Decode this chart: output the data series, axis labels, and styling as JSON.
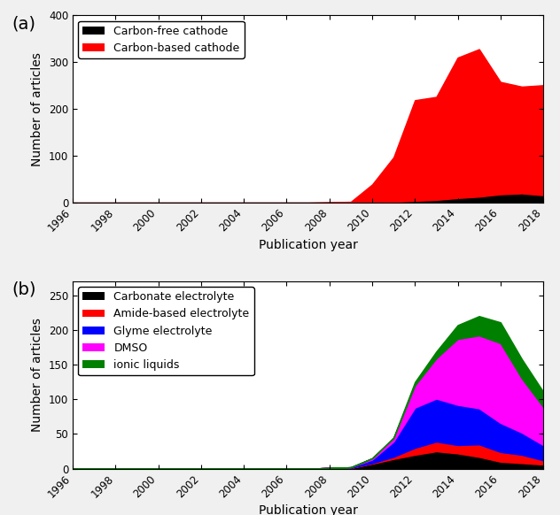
{
  "years": [
    1996,
    1997,
    1998,
    1999,
    2000,
    2001,
    2002,
    2003,
    2004,
    2005,
    2006,
    2007,
    2008,
    2009,
    2010,
    2011,
    2012,
    2013,
    2014,
    2015,
    2016,
    2017,
    2018
  ],
  "carbon_free": [
    0,
    0,
    0,
    0,
    0,
    0,
    0,
    0,
    0,
    0,
    0,
    0,
    0,
    0,
    1,
    2,
    4,
    6,
    10,
    13,
    18,
    20,
    16
  ],
  "carbon_based": [
    0,
    0,
    0,
    0,
    0,
    0,
    0,
    0,
    0,
    0,
    0,
    0,
    1,
    2,
    38,
    95,
    215,
    220,
    300,
    315,
    240,
    228,
    235
  ],
  "carbonate": [
    0,
    0,
    0,
    0,
    0,
    0,
    0,
    0,
    0,
    0,
    0,
    0,
    1,
    1,
    7,
    14,
    20,
    25,
    22,
    17,
    10,
    8,
    6
  ],
  "amide": [
    0,
    0,
    0,
    0,
    0,
    0,
    0,
    0,
    0,
    0,
    0,
    0,
    0,
    0,
    1,
    3,
    10,
    14,
    12,
    18,
    14,
    12,
    6
  ],
  "glyme": [
    0,
    0,
    0,
    0,
    0,
    0,
    0,
    0,
    0,
    0,
    0,
    0,
    0,
    1,
    5,
    22,
    58,
    62,
    58,
    52,
    42,
    32,
    22
  ],
  "dmso": [
    0,
    0,
    0,
    0,
    0,
    0,
    0,
    0,
    0,
    0,
    0,
    0,
    0,
    0,
    2,
    5,
    32,
    58,
    95,
    105,
    115,
    78,
    55
  ],
  "ionic_liquids": [
    0,
    0,
    0,
    0,
    0,
    0,
    0,
    0,
    0,
    0,
    0,
    0,
    0,
    0,
    0,
    1,
    5,
    10,
    20,
    28,
    30,
    28,
    22
  ],
  "panel_a_ylim": [
    0,
    400
  ],
  "panel_b_ylim": [
    0,
    270
  ],
  "panel_b_yticks": [
    0,
    50,
    100,
    150,
    200,
    250
  ],
  "panel_a_yticks": [
    0,
    100,
    200,
    300,
    400
  ],
  "xlabel": "Publication year",
  "ylabel": "Number of articles",
  "legend_a": [
    "Carbon-free cathode",
    "Carbon-based cathode"
  ],
  "legend_b": [
    "Carbonate electrolyte",
    "Amide-based electrolyte",
    "Glyme electrolyte",
    "DMSO",
    "ionic liquids"
  ],
  "colors_a": [
    "#000000",
    "#ff0000"
  ],
  "colors_b": [
    "#000000",
    "#ff0000",
    "#0000ff",
    "#ff00ff",
    "#008000"
  ],
  "label_a": "(a)",
  "label_b": "(b)",
  "xticks": [
    1996,
    1998,
    2000,
    2002,
    2004,
    2006,
    2008,
    2010,
    2012,
    2014,
    2016,
    2018
  ]
}
